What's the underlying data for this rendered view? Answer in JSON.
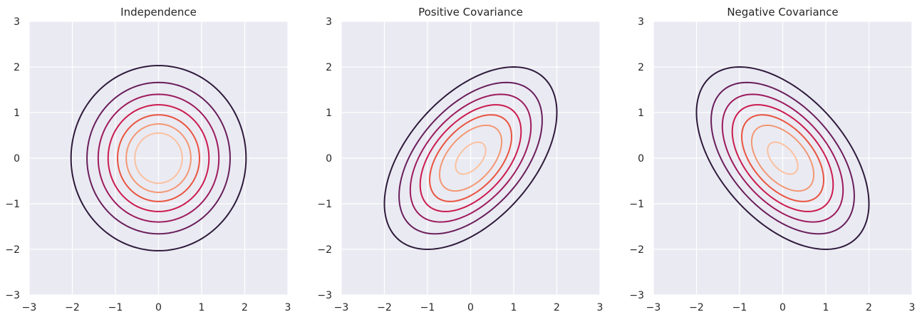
{
  "chart_data": [
    {
      "type": "contour",
      "title": "Independence",
      "xlim": [
        -3,
        3
      ],
      "ylim": [
        -3,
        3
      ],
      "xticks": [
        -3,
        -2,
        -1,
        0,
        1,
        2,
        3
      ],
      "yticks": [
        -3,
        -2,
        -1,
        0,
        1,
        2,
        3
      ],
      "grid": true,
      "mean": [
        0,
        0
      ],
      "covariance": [
        [
          1,
          0
        ],
        [
          0,
          1
        ]
      ],
      "contour_levels_mahalanobis": [
        0.55,
        0.75,
        0.95,
        1.17,
        1.4,
        1.66,
        2.03
      ]
    },
    {
      "type": "contour",
      "title": "Positive Covariance",
      "xlim": [
        -3,
        3
      ],
      "ylim": [
        -3,
        3
      ],
      "xticks": [
        -3,
        -2,
        -1,
        0,
        1,
        2,
        3
      ],
      "yticks": [
        -3,
        -2,
        -1,
        0,
        1,
        2,
        3
      ],
      "grid": true,
      "mean": [
        0,
        0
      ],
      "covariance": [
        [
          1,
          0.5
        ],
        [
          0.5,
          1
        ]
      ],
      "contour_levels_mahalanobis": [
        0.35,
        0.72,
        0.95,
        1.17,
        1.4,
        1.66,
        2.0
      ]
    },
    {
      "type": "contour",
      "title": "Negative Covariance",
      "xlim": [
        -3,
        3
      ],
      "ylim": [
        -3,
        3
      ],
      "xticks": [
        -3,
        -2,
        -1,
        0,
        1,
        2,
        3
      ],
      "yticks": [
        -3,
        -2,
        -1,
        0,
        1,
        2,
        3
      ],
      "grid": true,
      "mean": [
        0,
        0
      ],
      "covariance": [
        [
          1,
          -0.5
        ],
        [
          -0.5,
          1
        ]
      ],
      "contour_levels_mahalanobis": [
        0.35,
        0.72,
        0.95,
        1.17,
        1.4,
        1.66,
        2.0
      ]
    }
  ],
  "colors": {
    "contour_colormap": [
      "#fac1a0",
      "#f39774",
      "#e9533f",
      "#cb1b4f",
      "#9c1b5d",
      "#681e5a",
      "#2e1a3b"
    ]
  }
}
